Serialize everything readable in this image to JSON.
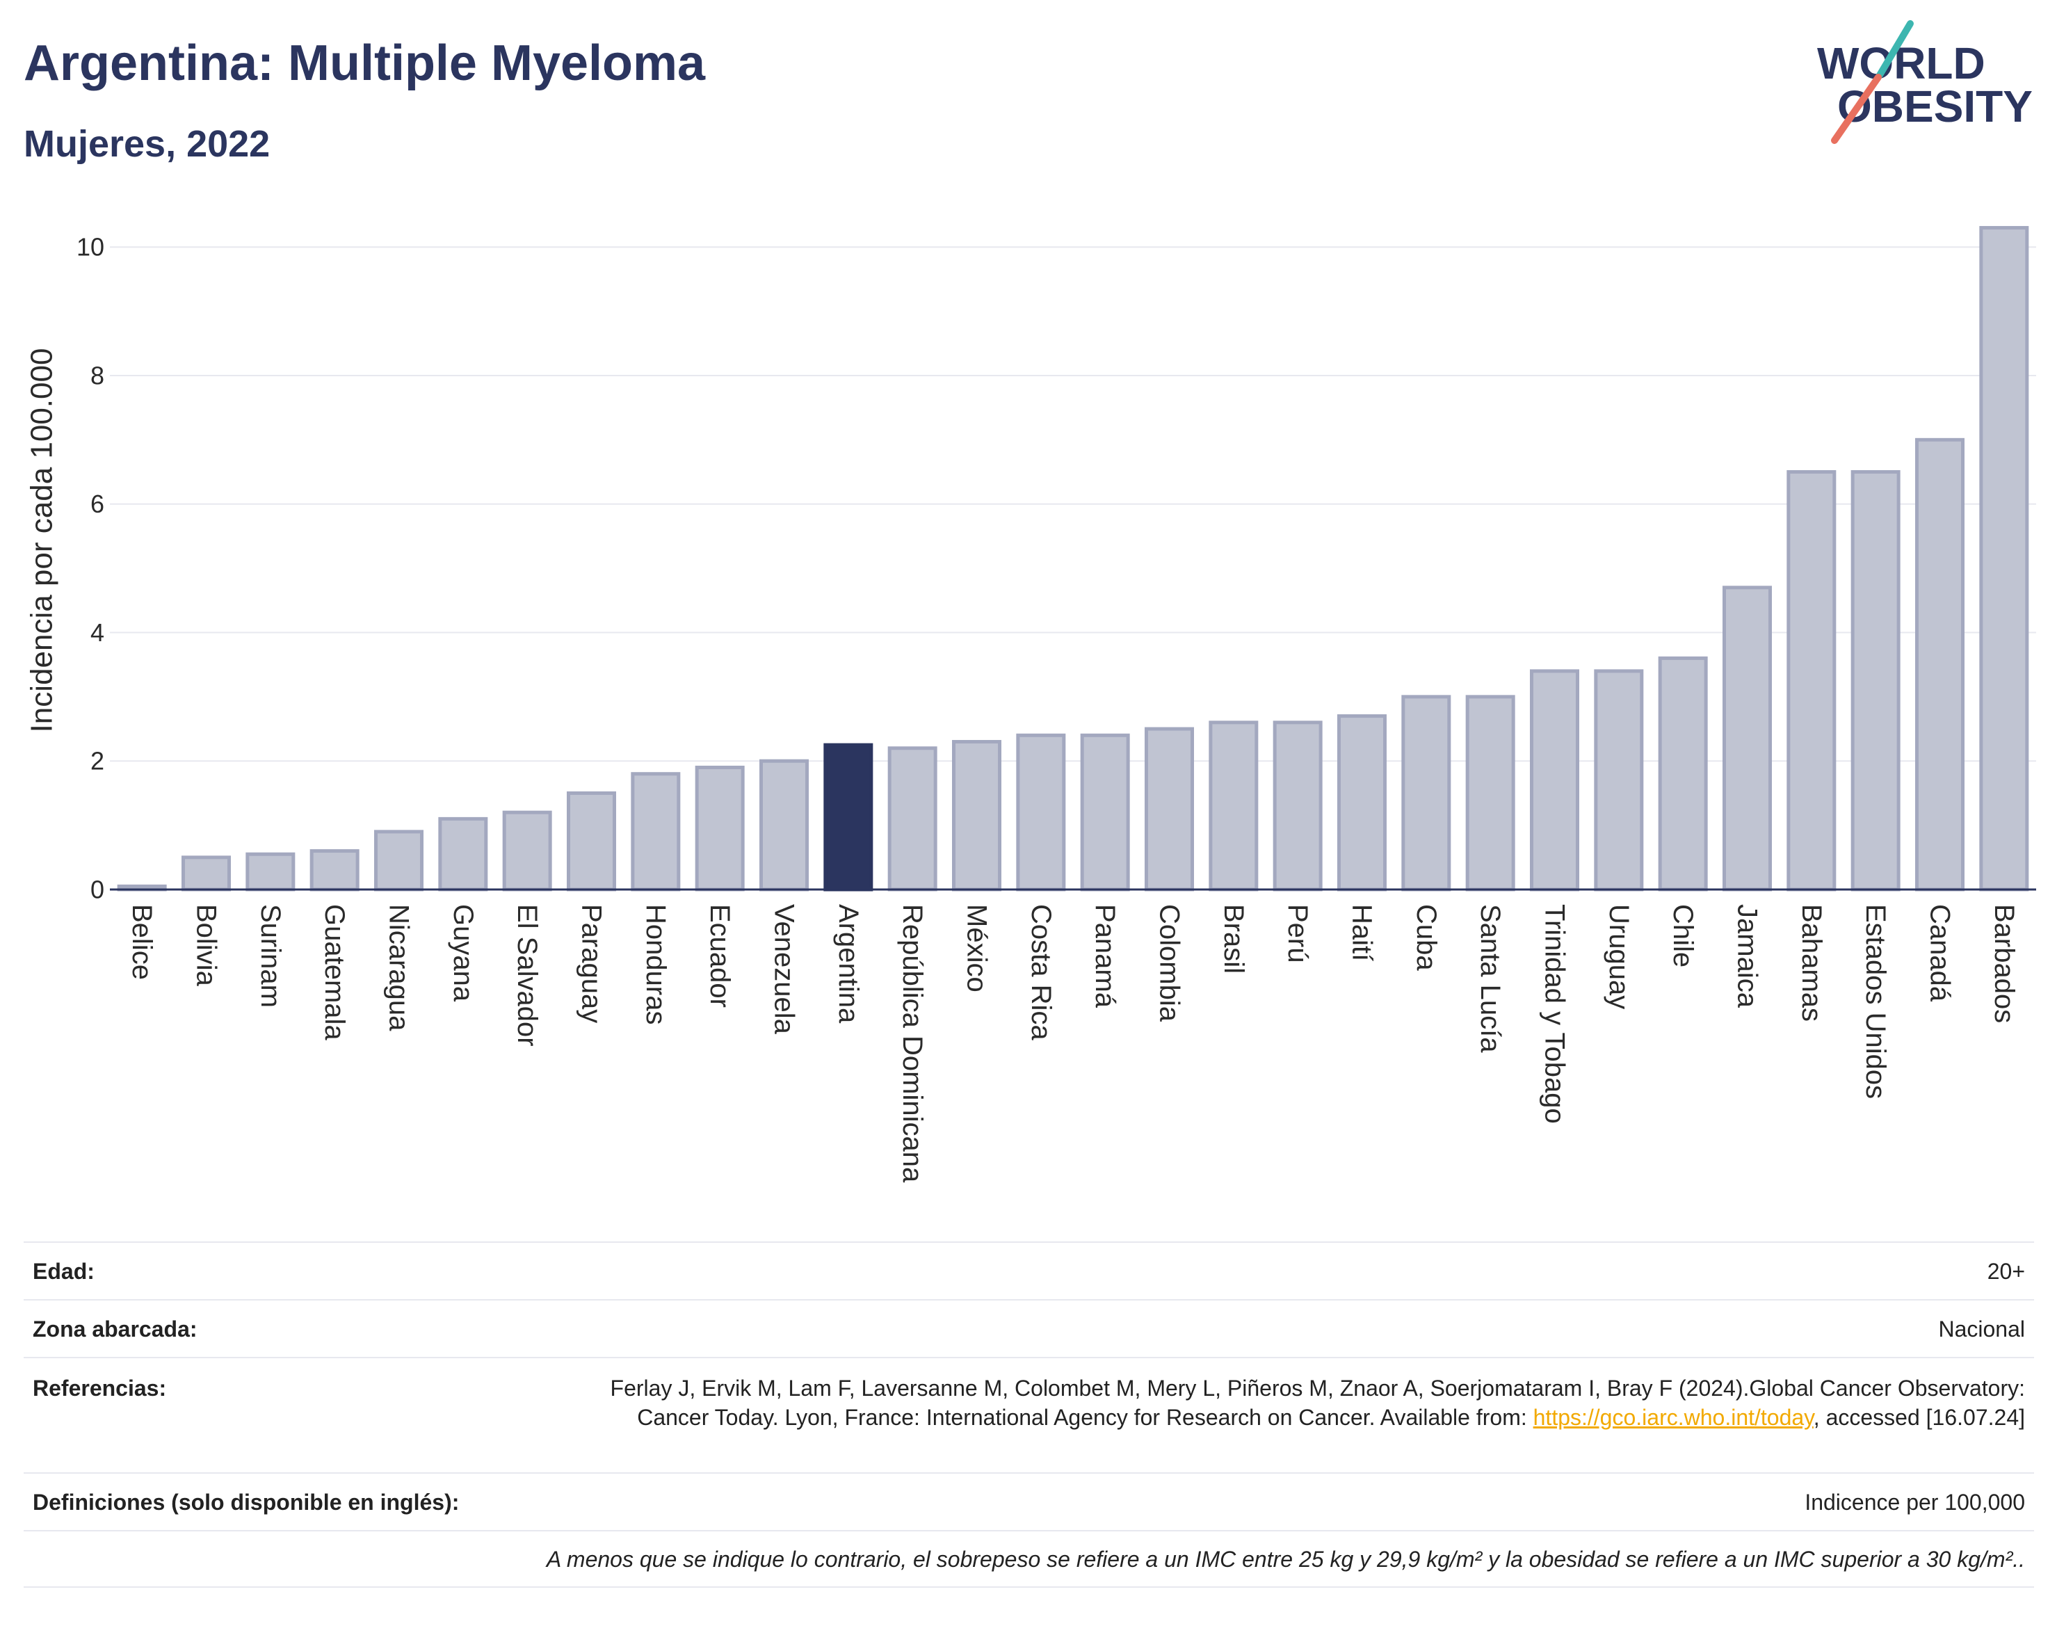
{
  "logo": {
    "line1": "WORLD",
    "line2": "OBESITY"
  },
  "colors": {
    "title": "#2b355f",
    "bar_fill": "#c0c4d2",
    "bar_stroke": "#a3a8bf",
    "highlight_fill": "#2b355f",
    "grid": "#e7e8ef",
    "zero_line": "#2b355f",
    "link": "#f2a900",
    "logo_teal": "#3db6b0",
    "logo_salmon": "#e8705f"
  },
  "chart_data": {
    "type": "bar",
    "title": "Argentina: Multiple Myeloma",
    "subtitle": "Mujeres, 2022",
    "xlabel": "",
    "ylabel": "Incidencia por cada 100.000",
    "ylim": [
      0,
      10.5
    ],
    "yticks": [
      0,
      2,
      4,
      6,
      8,
      10
    ],
    "grid": true,
    "categories": [
      "Belice",
      "Bolivia",
      "Surinam",
      "Guatemala",
      "Nicaragua",
      "Guyana",
      "El Salvador",
      "Paraguay",
      "Honduras",
      "Ecuador",
      "Venezuela",
      "Argentina",
      "República Dominicana",
      "México",
      "Costa Rica",
      "Panamá",
      "Colombia",
      "Brasil",
      "Perú",
      "Haití",
      "Cuba",
      "Santa Lucía",
      "Trinidad y Tobago",
      "Uruguay",
      "Chile",
      "Jamaica",
      "Bahamas",
      "Estados Unidos",
      "Canadá",
      "Barbados"
    ],
    "values": [
      0.05,
      0.5,
      0.55,
      0.6,
      0.9,
      1.1,
      1.2,
      1.5,
      1.8,
      1.9,
      2.0,
      2.25,
      2.2,
      2.3,
      2.4,
      2.4,
      2.5,
      2.6,
      2.6,
      2.7,
      3.0,
      3.0,
      3.4,
      3.4,
      3.6,
      4.7,
      6.5,
      6.5,
      7.0,
      10.3
    ],
    "highlighted": [
      false,
      false,
      false,
      false,
      false,
      false,
      false,
      false,
      false,
      false,
      false,
      true,
      false,
      false,
      false,
      false,
      false,
      false,
      false,
      false,
      false,
      false,
      false,
      false,
      false,
      false,
      false,
      false,
      false,
      false
    ]
  },
  "footer": {
    "age": {
      "label": "Edad:",
      "value": "20+"
    },
    "area": {
      "label": "Zona abarcada:",
      "value": "Nacional"
    },
    "references": {
      "label": "Referencias:",
      "text_before": "Ferlay J, Ervik M, Lam F, Laversanne M, Colombet M, Mery L, Piñeros M, Znaor A, Soerjomataram I, Bray F (2024).Global Cancer Observatory: Cancer Today. Lyon, France: International Agency for Research on Cancer. Available from: ",
      "link": "https://gco.iarc.who.int/today",
      "text_after": ", accessed [16.07.24]"
    },
    "definitions": {
      "label": "Definiciones (solo disponible en inglés):",
      "value": "Indicence per 100,000"
    },
    "note": "A menos que se indique lo contrario, el sobrepeso se refiere a un IMC entre 25 kg y 29,9 kg/m² y la obesidad se refiere a un IMC superior a 30 kg/m².."
  }
}
